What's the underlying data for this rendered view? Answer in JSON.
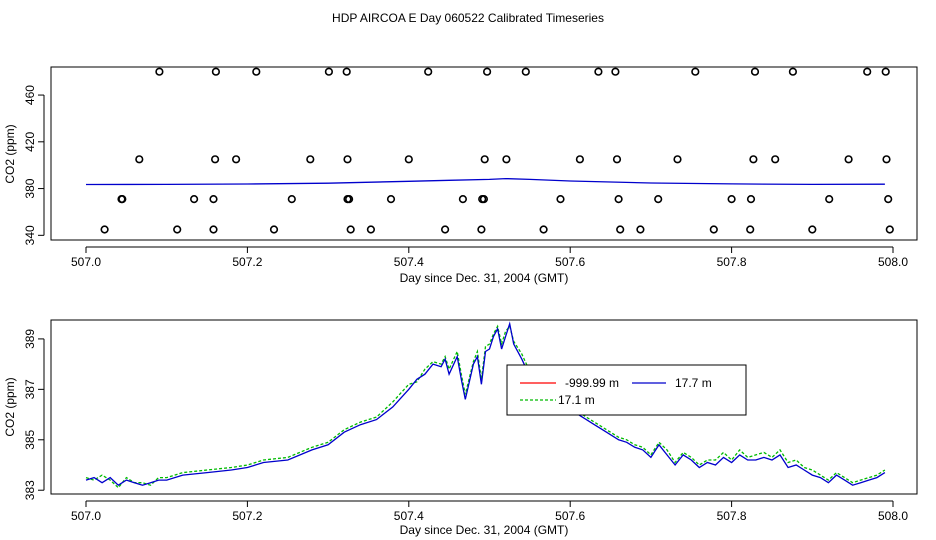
{
  "figure_title": "HDP AIRCOA E  Day 060522  Calibrated Timeseries",
  "colors": {
    "axis": "#000000",
    "series_red": "#ff0000",
    "series_blue": "#0000cc",
    "series_green": "#00bb00",
    "scatter": "#000000"
  },
  "chart_data": [
    {
      "type": "scatter",
      "xlabel": "Day since Dec. 31, 2004 (GMT)",
      "ylabel": "CO2 (ppm)",
      "xlim": [
        507.0,
        508.0
      ],
      "ylim": [
        336,
        484
      ],
      "xticks": [
        507.0,
        507.2,
        507.4,
        507.6,
        507.8,
        508.0
      ],
      "xtick_labels": [
        "507.0",
        "507.2",
        "507.4",
        "507.6",
        "507.8",
        "508.0"
      ],
      "yticks": [
        340,
        380,
        420,
        460
      ],
      "ytick_labels": [
        "340",
        "380",
        "420",
        "460"
      ],
      "points": [
        {
          "x": 507.091,
          "y": 480
        },
        {
          "x": 507.161,
          "y": 480
        },
        {
          "x": 507.211,
          "y": 480
        },
        {
          "x": 507.301,
          "y": 480
        },
        {
          "x": 507.323,
          "y": 480
        },
        {
          "x": 507.424,
          "y": 480
        },
        {
          "x": 507.497,
          "y": 480
        },
        {
          "x": 507.545,
          "y": 480
        },
        {
          "x": 507.635,
          "y": 480
        },
        {
          "x": 507.656,
          "y": 480
        },
        {
          "x": 507.755,
          "y": 480
        },
        {
          "x": 507.829,
          "y": 480
        },
        {
          "x": 507.876,
          "y": 480
        },
        {
          "x": 507.968,
          "y": 480
        },
        {
          "x": 507.991,
          "y": 480
        },
        {
          "x": 507.066,
          "y": 405
        },
        {
          "x": 507.16,
          "y": 405
        },
        {
          "x": 507.186,
          "y": 405
        },
        {
          "x": 507.278,
          "y": 405
        },
        {
          "x": 507.324,
          "y": 405
        },
        {
          "x": 507.4,
          "y": 405
        },
        {
          "x": 507.494,
          "y": 405
        },
        {
          "x": 507.521,
          "y": 405
        },
        {
          "x": 507.612,
          "y": 405
        },
        {
          "x": 507.658,
          "y": 405
        },
        {
          "x": 507.733,
          "y": 405
        },
        {
          "x": 507.827,
          "y": 405
        },
        {
          "x": 507.854,
          "y": 405
        },
        {
          "x": 507.945,
          "y": 405
        },
        {
          "x": 507.992,
          "y": 405
        },
        {
          "x": 507.044,
          "y": 371
        },
        {
          "x": 507.045,
          "y": 371
        },
        {
          "x": 507.134,
          "y": 371
        },
        {
          "x": 507.158,
          "y": 371
        },
        {
          "x": 507.255,
          "y": 371
        },
        {
          "x": 507.324,
          "y": 371
        },
        {
          "x": 507.326,
          "y": 371
        },
        {
          "x": 507.378,
          "y": 371
        },
        {
          "x": 507.467,
          "y": 371
        },
        {
          "x": 507.491,
          "y": 371
        },
        {
          "x": 507.493,
          "y": 371
        },
        {
          "x": 507.588,
          "y": 371
        },
        {
          "x": 507.66,
          "y": 371
        },
        {
          "x": 507.709,
          "y": 371
        },
        {
          "x": 507.8,
          "y": 371
        },
        {
          "x": 507.824,
          "y": 371
        },
        {
          "x": 507.921,
          "y": 371
        },
        {
          "x": 507.994,
          "y": 371
        },
        {
          "x": 507.023,
          "y": 345
        },
        {
          "x": 507.113,
          "y": 345
        },
        {
          "x": 507.158,
          "y": 345
        },
        {
          "x": 507.233,
          "y": 345
        },
        {
          "x": 507.328,
          "y": 345
        },
        {
          "x": 507.353,
          "y": 345
        },
        {
          "x": 507.445,
          "y": 345
        },
        {
          "x": 507.49,
          "y": 345
        },
        {
          "x": 507.567,
          "y": 345
        },
        {
          "x": 507.662,
          "y": 345
        },
        {
          "x": 507.687,
          "y": 345
        },
        {
          "x": 507.778,
          "y": 345
        },
        {
          "x": 507.823,
          "y": 345
        },
        {
          "x": 507.9,
          "y": 345
        },
        {
          "x": 507.996,
          "y": 345
        }
      ],
      "line": {
        "x": [
          507.0,
          507.1,
          507.2,
          507.3,
          507.4,
          507.45,
          507.5,
          507.52,
          507.55,
          507.6,
          507.7,
          507.8,
          507.9,
          507.99
        ],
        "y": [
          383.5,
          383.6,
          383.9,
          384.6,
          386.2,
          387.1,
          387.8,
          388.5,
          387.8,
          386.5,
          384.8,
          384.0,
          383.6,
          383.7
        ]
      }
    },
    {
      "type": "line",
      "xlabel": "Day since Dec. 31, 2004 (GMT)",
      "ylabel": "CO2 (ppm)",
      "xlim": [
        507.0,
        508.0
      ],
      "ylim": [
        382.85,
        389.75
      ],
      "xticks": [
        507.0,
        507.2,
        507.4,
        507.6,
        507.8,
        508.0
      ],
      "xtick_labels": [
        "507.0",
        "507.2",
        "507.4",
        "507.6",
        "507.8",
        "508.0"
      ],
      "yticks": [
        383,
        385,
        387,
        389
      ],
      "ytick_labels": [
        "383",
        "385",
        "387",
        "389"
      ],
      "legend": {
        "position": "right of center",
        "entries": [
          "-999.99 m",
          "17.7 m",
          "17.1 m"
        ]
      },
      "series": [
        {
          "name": "17.7 m",
          "x": [
            507.0,
            507.01,
            507.02,
            507.03,
            507.04,
            507.05,
            507.06,
            507.07,
            507.08,
            507.09,
            507.1,
            507.12,
            507.15,
            507.18,
            507.2,
            507.22,
            507.25,
            507.28,
            507.3,
            507.32,
            507.34,
            507.36,
            507.38,
            507.4,
            507.41,
            507.42,
            507.43,
            507.44,
            507.445,
            507.45,
            507.46,
            507.465,
            507.47,
            507.48,
            507.485,
            507.49,
            507.495,
            507.5,
            507.505,
            507.51,
            507.515,
            507.52,
            507.525,
            507.53,
            507.54,
            507.55,
            507.56,
            507.57,
            507.58,
            507.59,
            507.6,
            507.61,
            507.62,
            507.63,
            507.64,
            507.65,
            507.66,
            507.67,
            507.68,
            507.69,
            507.7,
            507.71,
            507.72,
            507.73,
            507.74,
            507.75,
            507.76,
            507.77,
            507.78,
            507.79,
            507.8,
            507.81,
            507.82,
            507.83,
            507.84,
            507.85,
            507.86,
            507.87,
            507.88,
            507.89,
            507.9,
            507.91,
            507.92,
            507.93,
            507.94,
            507.95,
            507.96,
            507.97,
            507.98,
            507.99
          ],
          "y": [
            383.4,
            383.5,
            383.3,
            383.5,
            383.2,
            383.4,
            383.3,
            383.2,
            383.3,
            383.4,
            383.4,
            383.6,
            383.7,
            383.8,
            383.9,
            384.1,
            384.2,
            384.6,
            384.8,
            385.3,
            385.6,
            385.8,
            386.3,
            387.0,
            387.4,
            387.6,
            388.0,
            387.9,
            388.2,
            387.6,
            388.3,
            387.4,
            386.6,
            388.0,
            388.3,
            387.2,
            388.5,
            388.6,
            389.1,
            389.4,
            388.6,
            389.1,
            389.6,
            388.8,
            388.2,
            387.5,
            387.2,
            387.0,
            386.8,
            386.4,
            386.1,
            386.0,
            385.8,
            385.6,
            385.4,
            385.2,
            385.0,
            384.9,
            384.7,
            384.6,
            384.3,
            384.8,
            384.4,
            384.0,
            384.4,
            384.2,
            383.9,
            384.1,
            384.0,
            384.3,
            384.1,
            384.4,
            384.2,
            384.2,
            384.3,
            384.2,
            384.4,
            383.9,
            384.0,
            383.8,
            383.6,
            383.5,
            383.3,
            383.6,
            383.4,
            383.2,
            383.3,
            383.4,
            383.5,
            383.7
          ]
        },
        {
          "name": "17.1 m",
          "x": [
            507.0,
            507.01,
            507.02,
            507.03,
            507.04,
            507.05,
            507.06,
            507.07,
            507.08,
            507.09,
            507.1,
            507.12,
            507.15,
            507.18,
            507.2,
            507.22,
            507.25,
            507.28,
            507.3,
            507.32,
            507.34,
            507.36,
            507.38,
            507.4,
            507.41,
            507.42,
            507.43,
            507.44,
            507.445,
            507.45,
            507.46,
            507.465,
            507.47,
            507.48,
            507.485,
            507.49,
            507.495,
            507.5,
            507.505,
            507.51,
            507.515,
            507.52,
            507.525,
            507.53,
            507.54,
            507.55,
            507.56,
            507.57,
            507.58,
            507.59,
            507.6,
            507.61,
            507.62,
            507.63,
            507.64,
            507.65,
            507.66,
            507.67,
            507.68,
            507.69,
            507.7,
            507.71,
            507.72,
            507.73,
            507.74,
            507.75,
            507.76,
            507.77,
            507.78,
            507.79,
            507.8,
            507.81,
            507.82,
            507.83,
            507.84,
            507.85,
            507.86,
            507.87,
            507.88,
            507.89,
            507.9,
            507.91,
            507.92,
            507.93,
            507.94,
            507.95,
            507.96,
            507.97,
            507.98,
            507.99
          ],
          "y": [
            383.5,
            383.4,
            383.6,
            383.4,
            383.1,
            383.5,
            383.3,
            383.3,
            383.2,
            383.5,
            383.5,
            383.7,
            383.8,
            383.9,
            384.0,
            384.2,
            384.3,
            384.7,
            384.9,
            385.4,
            385.7,
            385.9,
            386.5,
            387.2,
            387.3,
            387.8,
            388.1,
            388.0,
            388.3,
            387.8,
            388.5,
            387.6,
            386.8,
            388.1,
            388.5,
            387.4,
            388.7,
            388.8,
            389.2,
            389.5,
            388.8,
            389.3,
            389.5,
            388.9,
            388.4,
            387.7,
            387.4,
            387.0,
            386.9,
            386.5,
            386.2,
            386.1,
            385.9,
            385.7,
            385.5,
            385.3,
            385.1,
            385.0,
            384.8,
            384.7,
            384.4,
            384.9,
            384.6,
            384.1,
            384.5,
            384.3,
            384.0,
            384.2,
            384.2,
            384.5,
            384.2,
            384.6,
            384.3,
            384.4,
            384.5,
            384.3,
            384.6,
            384.1,
            384.2,
            383.9,
            383.8,
            383.6,
            383.4,
            383.7,
            383.5,
            383.3,
            383.4,
            383.5,
            383.6,
            383.8
          ]
        },
        {
          "name": "-999.99 m",
          "x": [],
          "y": []
        }
      ]
    }
  ]
}
